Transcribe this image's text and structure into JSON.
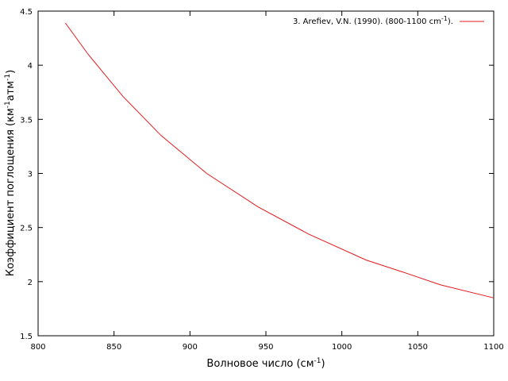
{
  "chart_data": {
    "type": "line",
    "title": "",
    "xlabel": "Волновое число (см",
    "xlabel_sup": "-1",
    "xlabel_end": ")",
    "ylabel_parts": [
      "Коэффициент поглощения (км",
      "-1",
      "атм",
      "-1",
      ")"
    ],
    "xlim": [
      800,
      1100
    ],
    "ylim": [
      1.5,
      4.5
    ],
    "x_ticks": [
      800,
      850,
      900,
      950,
      1000,
      1050,
      1100
    ],
    "y_ticks": [
      1.5,
      2,
      2.5,
      3,
      3.5,
      4,
      4.5
    ],
    "x_tick_labels": [
      "800",
      "850",
      "900",
      "950",
      "1000",
      "1050",
      "1100"
    ],
    "y_tick_labels": [
      "1.5",
      "2",
      "2.5",
      "3",
      "3.5",
      "4",
      "4.5"
    ],
    "grid": false,
    "legend_position": "top-right",
    "series": [
      {
        "name": "3. Arefiev, V.N. (1990). (800-1100 cm",
        "name_sup": "-1",
        "name_end": ").",
        "color": "#e41a1c",
        "x": [
          818,
          833,
          856,
          881,
          911,
          945,
          978,
          1016,
          1040,
          1065,
          1100
        ],
        "y": [
          4.39,
          4.1,
          3.71,
          3.35,
          3.0,
          2.69,
          2.44,
          2.2,
          2.09,
          1.97,
          1.85
        ]
      }
    ]
  }
}
